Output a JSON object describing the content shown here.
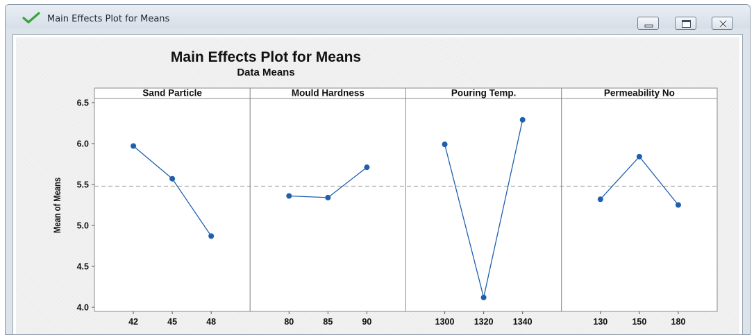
{
  "window": {
    "title": "Main Effects Plot for Means",
    "icon": "check-icon",
    "buttons": [
      "minimize-icon",
      "maximize-icon",
      "close-icon"
    ]
  },
  "chart_data": {
    "type": "line",
    "title": "Main Effects Plot for Means",
    "subtitle": "Data Means",
    "ylabel": "Mean of Means",
    "ylim": [
      3.95,
      6.55
    ],
    "yticks": [
      4.0,
      4.5,
      5.0,
      5.5,
      6.0,
      6.5
    ],
    "ytick_labels": [
      "4.0",
      "4.5",
      "5.0",
      "5.5",
      "6.0",
      "6.5"
    ],
    "reference_line": 5.48,
    "grid": false,
    "line_color": "#1f5fae",
    "panels": [
      {
        "name": "Sand Particle",
        "categories": [
          "42",
          "45",
          "48"
        ],
        "values": [
          5.97,
          5.57,
          4.87
        ]
      },
      {
        "name": "Mould Hardness",
        "categories": [
          "80",
          "85",
          "90"
        ],
        "values": [
          5.36,
          5.34,
          5.71
        ]
      },
      {
        "name": "Pouring Temp.",
        "categories": [
          "1300",
          "1320",
          "1340"
        ],
        "values": [
          5.99,
          4.12,
          6.29
        ]
      },
      {
        "name": "Permeability No",
        "categories": [
          "130",
          "150",
          "180"
        ],
        "values": [
          5.32,
          5.84,
          5.25
        ]
      }
    ]
  }
}
